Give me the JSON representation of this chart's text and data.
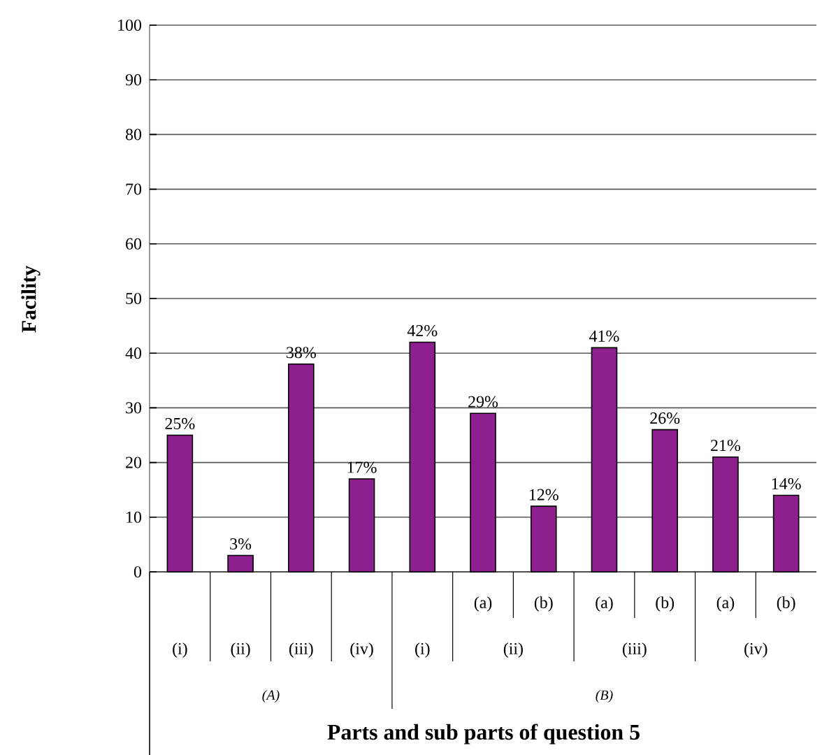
{
  "chart_data": {
    "type": "bar",
    "xlabel": "Parts and sub parts of question 5",
    "ylabel": "Facility",
    "categories": [
      "(i)",
      "(ii)",
      "(iii)",
      "(iv)",
      "(i)",
      "(a)",
      "(b)",
      "(a)",
      "(b)",
      "(a)",
      "(b)"
    ],
    "values": [
      25,
      3,
      38,
      17,
      42,
      29,
      12,
      41,
      26,
      21,
      14
    ],
    "value_labels": [
      "25%",
      "3%",
      "38%",
      "17%",
      "42%",
      "29%",
      "12%",
      "41%",
      "26%",
      "21%",
      "14%"
    ],
    "color": "#8e1f8e",
    "annotations": [
      "(ii)",
      "(iii)",
      "(iv)",
      "(A)",
      "(B)"
    ],
    "ylim": [
      0,
      100
    ],
    "yticks": [
      0,
      10,
      20,
      30,
      40,
      50,
      60,
      70,
      80,
      90,
      100
    ],
    "grid": "y"
  }
}
